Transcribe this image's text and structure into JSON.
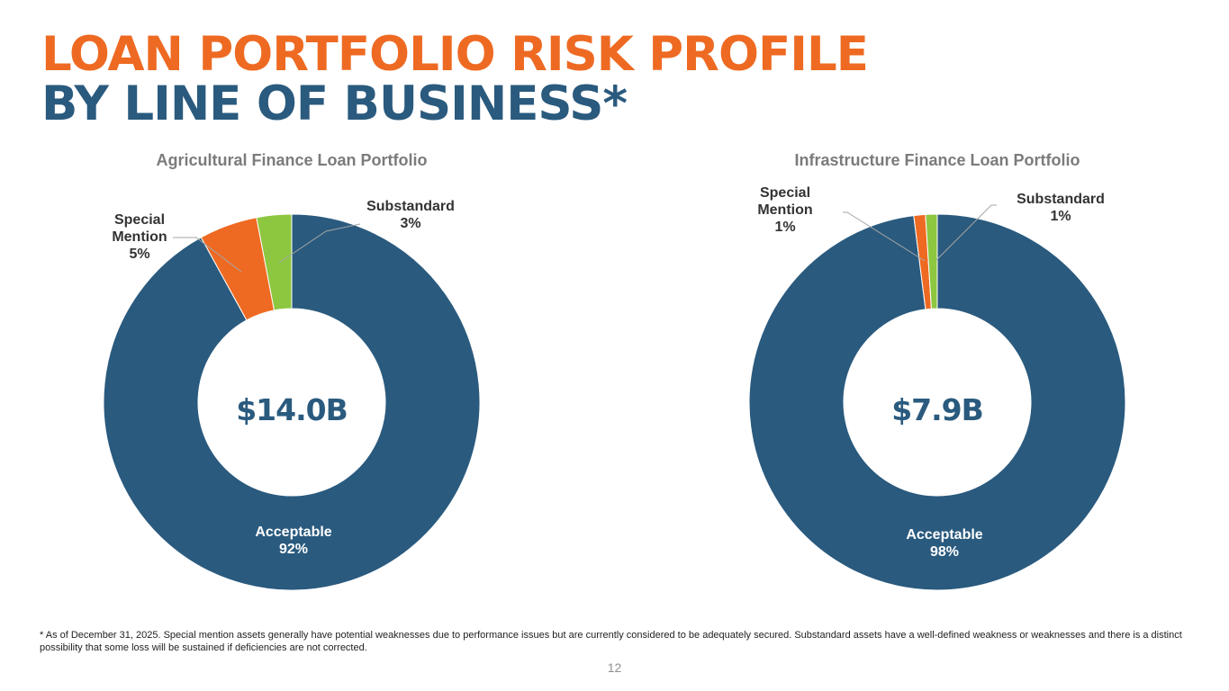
{
  "title": {
    "line1": "LOAN PORTFOLIO RISK PROFILE",
    "line2": "BY LINE OF BUSINESS*"
  },
  "colors": {
    "acceptable": "#2a5a7e",
    "special_mention": "#ee6a22",
    "substandard": "#8dc63f",
    "title_orange": "#ee6a22",
    "title_blue": "#2a5a7e"
  },
  "chart_data": [
    {
      "type": "pie",
      "title": "Agricultural Finance Loan Portfolio",
      "center_label": "$14.0B",
      "slices": [
        {
          "name": "Acceptable",
          "value": 92,
          "label": "92%",
          "color": "#2a5a7e"
        },
        {
          "name": "Special\nMention",
          "value": 5,
          "label": "5%",
          "color": "#ee6a22"
        },
        {
          "name": "Substandard",
          "value": 3,
          "label": "3%",
          "color": "#8dc63f"
        }
      ]
    },
    {
      "type": "pie",
      "title": "Infrastructure Finance Loan Portfolio",
      "center_label": "$7.9B",
      "slices": [
        {
          "name": "Acceptable",
          "value": 98,
          "label": "98%",
          "color": "#2a5a7e"
        },
        {
          "name": "Special\nMention",
          "value": 1,
          "label": "1%",
          "color": "#ee6a22"
        },
        {
          "name": "Substandard",
          "value": 1,
          "label": "1%",
          "color": "#8dc63f"
        }
      ]
    }
  ],
  "footnote": "* As of December 31, 2025. Special mention assets generally have potential weaknesses due to performance issues but are currently considered to be adequately secured. Substandard assets have a well-defined weakness or weaknesses and there is a distinct possibility that some loss will be sustained if deficiencies are not corrected.",
  "page_number": "12"
}
